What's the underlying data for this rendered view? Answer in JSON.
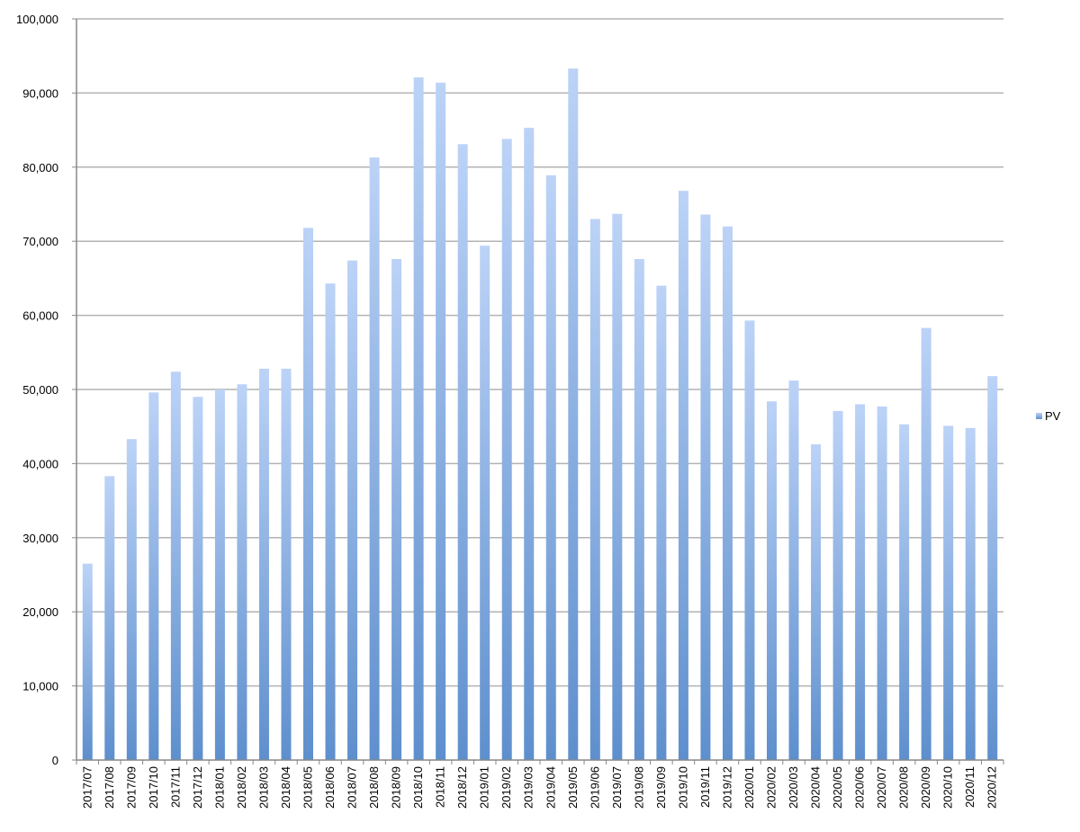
{
  "chart_data": {
    "type": "bar",
    "series": [
      {
        "name": "PV",
        "values": [
          26500,
          38300,
          43300,
          49600,
          52400,
          49000,
          50000,
          50700,
          52800,
          52800,
          71800,
          64300,
          67400,
          81300,
          67600,
          92100,
          91400,
          83100,
          69400,
          83800,
          85300,
          78900,
          93300,
          73000,
          73700,
          67600,
          64000,
          76800,
          73600,
          72000,
          59300,
          48400,
          51200,
          42600,
          47100,
          48000,
          47700,
          45300,
          58300,
          45100,
          44800,
          51800
        ]
      }
    ],
    "categories": [
      "2017/07",
      "2017/08",
      "2017/09",
      "2017/10",
      "2017/11",
      "2017/12",
      "2018/01",
      "2018/02",
      "2018/03",
      "2018/04",
      "2018/05",
      "2018/06",
      "2018/07",
      "2018/08",
      "2018/09",
      "2018/10",
      "2018/11",
      "2018/12",
      "2019/01",
      "2019/02",
      "2019/03",
      "2019/04",
      "2019/05",
      "2019/06",
      "2019/07",
      "2019/08",
      "2019/09",
      "2019/10",
      "2019/11",
      "2019/12",
      "2020/01",
      "2020/02",
      "2020/03",
      "2020/04",
      "2020/05",
      "2020/06",
      "2020/07",
      "2020/08",
      "2020/09",
      "2020/10",
      "2020/11",
      "2020/12"
    ],
    "y_ticks": [
      "0",
      "10,000",
      "20,000",
      "30,000",
      "40,000",
      "50,000",
      "60,000",
      "70,000",
      "80,000",
      "90,000",
      "100,000"
    ],
    "ylim": [
      0,
      100000
    ],
    "grid": true,
    "legend_position": "right",
    "colors": {
      "bar_top": "#bcd3f7",
      "bar_bottom": "#5e8fcd",
      "grid": "#b3b3b3",
      "axis": "#888888"
    }
  }
}
